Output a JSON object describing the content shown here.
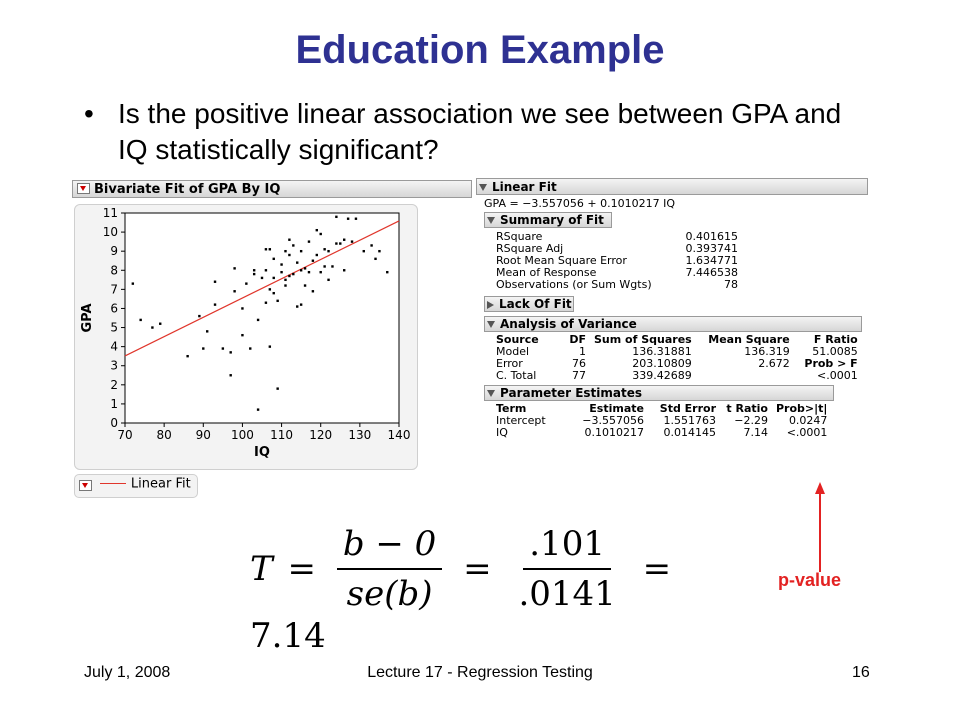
{
  "slide": {
    "title": "Education Example",
    "bullet": "Is the positive linear association we see between GPA and IQ statistically significant?"
  },
  "bivariate": {
    "header": "Bivariate Fit of GPA By IQ",
    "legend_label": "Linear Fit",
    "line_color": "#e0362c"
  },
  "chart_data": {
    "type": "scatter",
    "title": "",
    "xlabel": "IQ",
    "ylabel": "GPA",
    "xlim": [
      70,
      140
    ],
    "ylim": [
      0,
      11
    ],
    "x_ticks": [
      70,
      80,
      90,
      100,
      110,
      120,
      130,
      140
    ],
    "y_ticks": [
      0,
      1,
      2,
      3,
      4,
      5,
      6,
      7,
      8,
      9,
      10,
      11
    ],
    "fit_line": {
      "intercept": -3.557056,
      "slope": 0.1010217
    },
    "points": [
      [
        72,
        7.3
      ],
      [
        74,
        5.4
      ],
      [
        77,
        5.0
      ],
      [
        79,
        5.2
      ],
      [
        86,
        3.5
      ],
      [
        89,
        5.6
      ],
      [
        90,
        3.9
      ],
      [
        91,
        4.8
      ],
      [
        93,
        6.2
      ],
      [
        93,
        7.4
      ],
      [
        95,
        3.9
      ],
      [
        97,
        3.7
      ],
      [
        97,
        2.5
      ],
      [
        98,
        8.1
      ],
      [
        98,
        6.9
      ],
      [
        100,
        4.6
      ],
      [
        100,
        6.0
      ],
      [
        101,
        7.3
      ],
      [
        102,
        3.9
      ],
      [
        103,
        7.8
      ],
      [
        103,
        8.0
      ],
      [
        104,
        0.7
      ],
      [
        104,
        5.4
      ],
      [
        105,
        7.6
      ],
      [
        106,
        6.3
      ],
      [
        106,
        8.0
      ],
      [
        106,
        9.1
      ],
      [
        107,
        4.0
      ],
      [
        107,
        7.0
      ],
      [
        107,
        9.1
      ],
      [
        108,
        6.8
      ],
      [
        108,
        7.6
      ],
      [
        108,
        8.6
      ],
      [
        109,
        1.8
      ],
      [
        109,
        6.4
      ],
      [
        110,
        7.9
      ],
      [
        110,
        8.3
      ],
      [
        111,
        7.2
      ],
      [
        111,
        7.5
      ],
      [
        111,
        9.0
      ],
      [
        112,
        7.7
      ],
      [
        112,
        8.8
      ],
      [
        112,
        9.6
      ],
      [
        113,
        9.3
      ],
      [
        113,
        7.8
      ],
      [
        114,
        6.1
      ],
      [
        114,
        8.4
      ],
      [
        115,
        8.0
      ],
      [
        115,
        6.2
      ],
      [
        115,
        9.0
      ],
      [
        116,
        7.2
      ],
      [
        116,
        8.1
      ],
      [
        117,
        9.5
      ],
      [
        117,
        7.9
      ],
      [
        118,
        8.5
      ],
      [
        118,
        6.9
      ],
      [
        119,
        10.1
      ],
      [
        119,
        8.8
      ],
      [
        120,
        9.9
      ],
      [
        120,
        7.9
      ],
      [
        121,
        8.2
      ],
      [
        121,
        9.1
      ],
      [
        122,
        9.0
      ],
      [
        122,
        7.5
      ],
      [
        123,
        8.2
      ],
      [
        124,
        9.4
      ],
      [
        124,
        10.8
      ],
      [
        125,
        9.4
      ],
      [
        126,
        8.0
      ],
      [
        126,
        9.6
      ],
      [
        127,
        10.7
      ],
      [
        128,
        9.5
      ],
      [
        129,
        10.7
      ],
      [
        131,
        9.0
      ],
      [
        133,
        9.3
      ],
      [
        135,
        9.0
      ],
      [
        137,
        7.9
      ],
      [
        134,
        8.6
      ]
    ]
  },
  "linear_fit": {
    "header": "Linear Fit",
    "equation": "GPA = −3.557056 + 0.1010217 IQ",
    "summary": {
      "header": "Summary of Fit",
      "rows": [
        {
          "label": "RSquare",
          "value": "0.401615"
        },
        {
          "label": "RSquare Adj",
          "value": "0.393741"
        },
        {
          "label": "Root Mean Square Error",
          "value": "1.634771"
        },
        {
          "label": "Mean of Response",
          "value": "7.446538"
        },
        {
          "label": "Observations (or Sum Wgts)",
          "value": "78"
        }
      ]
    },
    "lack_of_fit": {
      "header": "Lack Of Fit"
    },
    "anova": {
      "header": "Analysis of Variance",
      "columns": [
        "Source",
        "DF",
        "Sum of Squares",
        "Mean Square",
        "F Ratio"
      ],
      "rows": [
        [
          "Model",
          "1",
          "136.31881",
          "136.319",
          "51.0085"
        ],
        [
          "Error",
          "76",
          "203.10809",
          "2.672",
          "Prob > F"
        ],
        [
          "C. Total",
          "77",
          "339.42689",
          "",
          "<.0001"
        ]
      ]
    },
    "params": {
      "header": "Parameter Estimates",
      "columns": [
        "Term",
        "Estimate",
        "Std Error",
        "t Ratio",
        "Prob>|t|"
      ],
      "rows": [
        [
          "Intercept",
          "−3.557056",
          "1.551763",
          "−2.29",
          "0.0247"
        ],
        [
          "IQ",
          "0.1010217",
          "0.014145",
          "7.14",
          "<.0001"
        ]
      ]
    }
  },
  "formula": {
    "lhs": "T",
    "eq": "=",
    "num1": "b − 0",
    "den1": "se(b)",
    "num2": ".101",
    "den2": ".0141",
    "result": "7.14"
  },
  "annotation": {
    "label": "p-value",
    "color": "#e32222"
  },
  "footer": {
    "date": "July 1, 2008",
    "center": "Lecture 17 - Regression Testing",
    "page": "16"
  }
}
